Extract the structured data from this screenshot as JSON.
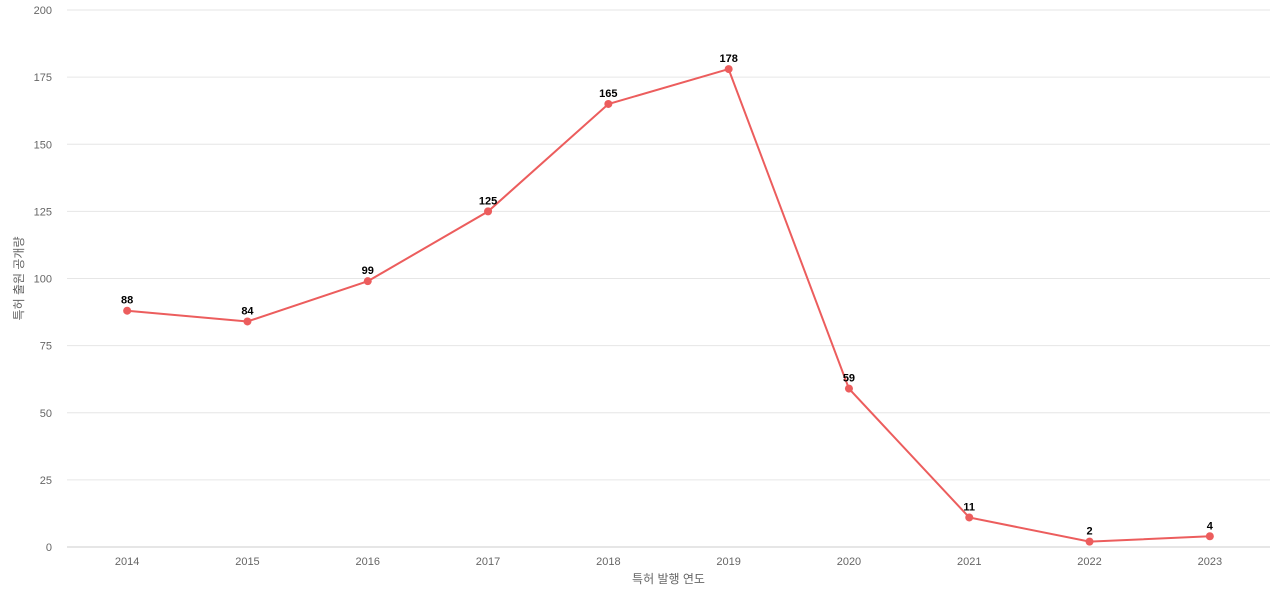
{
  "chart_data": {
    "type": "line",
    "title": "",
    "xlabel": "특허 발행 연도",
    "ylabel": "특허 출원 공개량",
    "categories": [
      "2014",
      "2015",
      "2016",
      "2017",
      "2018",
      "2019",
      "2020",
      "2021",
      "2022",
      "2023"
    ],
    "series": [
      {
        "values": [
          88,
          84,
          99,
          125,
          165,
          178,
          59,
          11,
          2,
          4
        ],
        "color": "#ec5d5d"
      }
    ],
    "ylim": [
      0,
      200
    ],
    "yticks": [
      0,
      25,
      50,
      75,
      100,
      125,
      150,
      175,
      200
    ],
    "grid": true,
    "legend": "none"
  }
}
